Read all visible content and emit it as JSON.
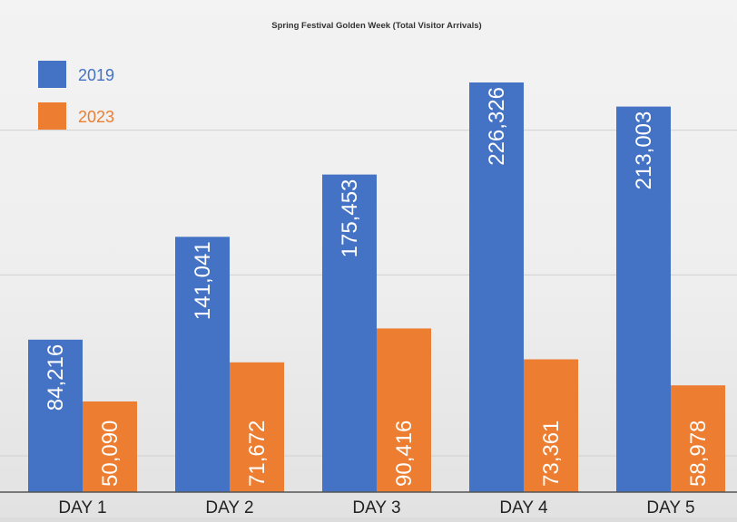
{
  "chart_data": {
    "type": "bar",
    "title": "Spring Festival Golden Week (Total Visitor Arrivals)",
    "xlabel": "",
    "ylabel": "",
    "categories": [
      "DAY 1",
      "DAY 2",
      "DAY 3",
      "DAY 4",
      "DAY 5"
    ],
    "series": [
      {
        "name": "2019",
        "color": "#4472c4",
        "values": [
          84216,
          141041,
          175453,
          226326,
          213003
        ],
        "labels": [
          "84,216",
          "141,041",
          "175,453",
          "226,326",
          "213,003"
        ]
      },
      {
        "name": "2023",
        "color": "#ed7d31",
        "values": [
          50090,
          71672,
          90416,
          73361,
          58978
        ],
        "labels": [
          "50,090",
          "71,672",
          "90,416",
          "73,361",
          "58,978"
        ]
      }
    ],
    "ylim": [
      0,
      250000
    ],
    "grid": true,
    "legend_position": "top-left",
    "data_labels": "rotated-inside-bars"
  }
}
